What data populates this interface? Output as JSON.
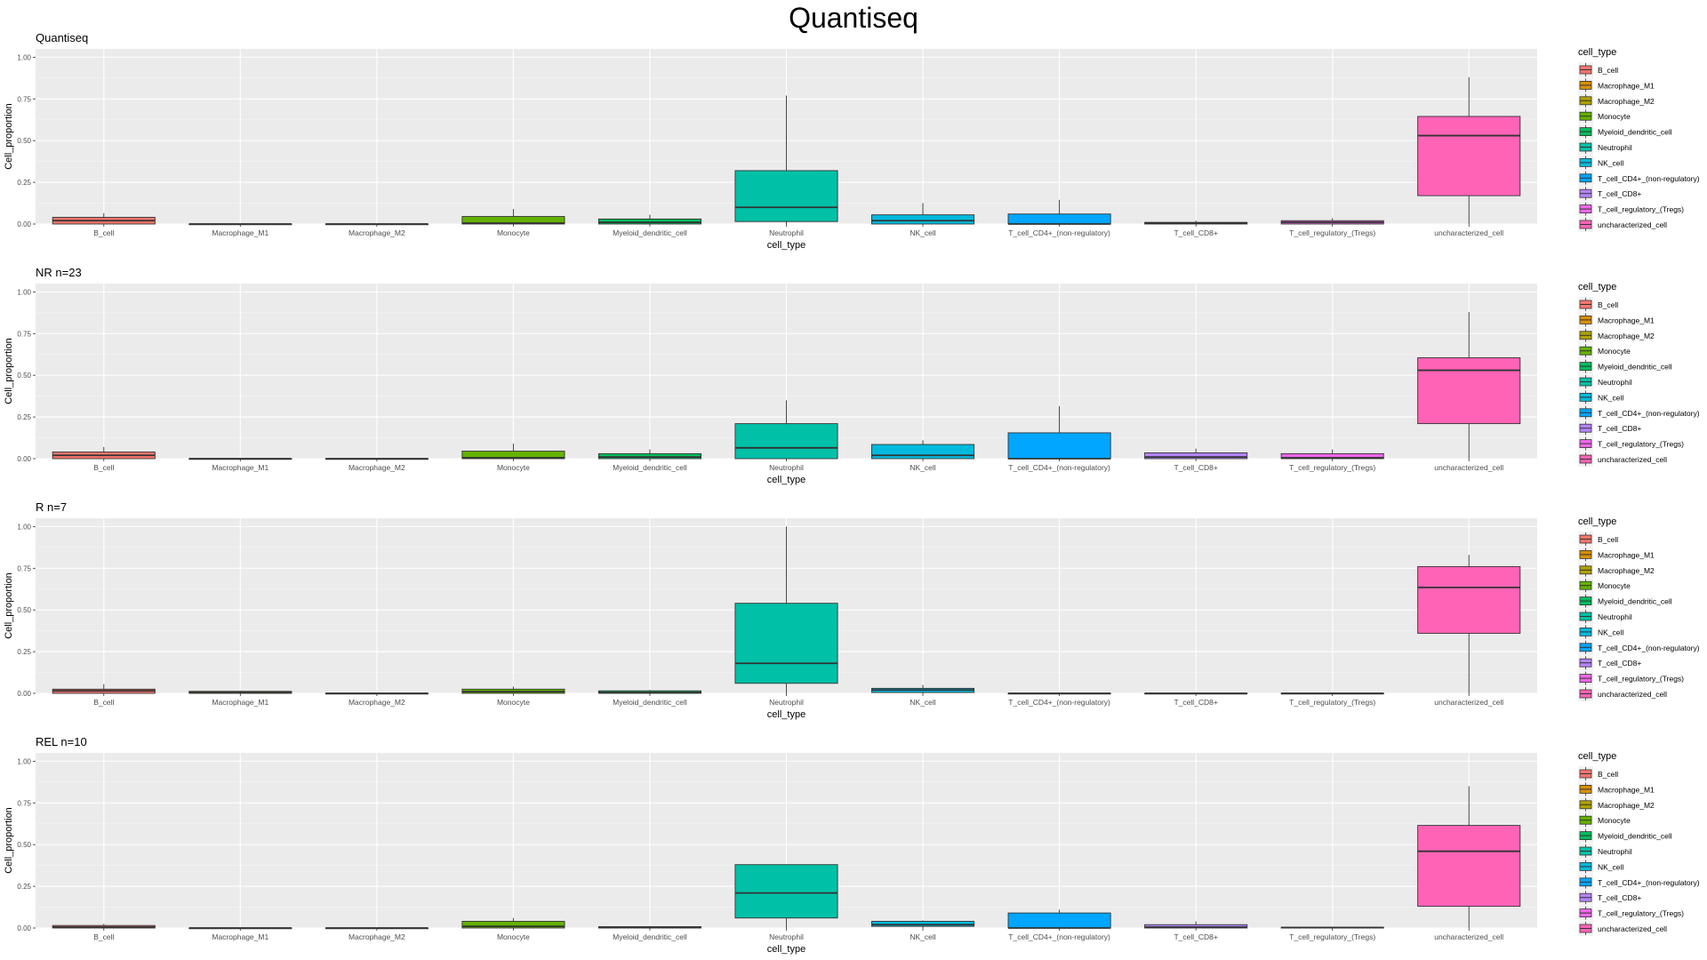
{
  "figure": {
    "title": "Quantiseq"
  },
  "legend": {
    "title": "cell_type",
    "placement": "right",
    "colors": [
      "#F8766D",
      "#DB8E00",
      "#AEA200",
      "#64B200",
      "#00BD5C",
      "#00C1A7",
      "#00BADE",
      "#00A6FF",
      "#B385FF",
      "#EF67EB",
      "#FF63B6"
    ]
  },
  "chart_data": [
    {
      "type": "boxplot",
      "title": "Quantiseq",
      "xlabel": "cell_type",
      "ylabel": "Cell_proportion",
      "ylim": [
        0,
        1.05
      ],
      "yticks": [
        0,
        0.25,
        0.5,
        0.75,
        1.0
      ],
      "ytick_labels": [
        "0.00",
        "0.25",
        "0.50",
        "0.75",
        "1.00"
      ],
      "grid": true,
      "categories": [
        "B_cell",
        "Macrophage_M1",
        "Macrophage_M2",
        "Monocyte",
        "Myeloid_dendritic_cell",
        "Neutrophil",
        "NK_cell",
        "T_cell_CD4+_(non-regulatory)",
        "T_cell_CD8+",
        "T_cell_regulatory_(Tregs)",
        "uncharacterized_cell"
      ],
      "boxes": [
        {
          "min": 0.0,
          "q1": 0.0,
          "median": 0.02,
          "q3": 0.04,
          "max": 0.065
        },
        {
          "min": 0.0,
          "q1": 0.0,
          "median": 0.0,
          "q3": 0.0,
          "max": 0.0
        },
        {
          "min": 0.0,
          "q1": 0.0,
          "median": 0.0,
          "q3": 0.0,
          "max": 0.0
        },
        {
          "min": 0.0,
          "q1": 0.0,
          "median": 0.005,
          "q3": 0.045,
          "max": 0.09
        },
        {
          "min": 0.0,
          "q1": 0.0,
          "median": 0.01,
          "q3": 0.03,
          "max": 0.055
        },
        {
          "min": 0.0,
          "q1": 0.015,
          "median": 0.1,
          "q3": 0.32,
          "max": 0.77
        },
        {
          "min": 0.0,
          "q1": 0.0,
          "median": 0.02,
          "q3": 0.055,
          "max": 0.125
        },
        {
          "min": 0.0,
          "q1": 0.0,
          "median": 0.0,
          "q3": 0.06,
          "max": 0.145
        },
        {
          "min": 0.0,
          "q1": 0.0,
          "median": 0.005,
          "q3": 0.01,
          "max": 0.02
        },
        {
          "min": 0.0,
          "q1": 0.0,
          "median": 0.01,
          "q3": 0.02,
          "max": 0.035
        },
        {
          "min": 0.0,
          "q1": 0.17,
          "median": 0.53,
          "q3": 0.645,
          "max": 0.88
        }
      ]
    },
    {
      "type": "boxplot",
      "title": "NR n=23",
      "xlabel": "cell_type",
      "ylabel": "Cell_proportion",
      "ylim": [
        0,
        1.05
      ],
      "yticks": [
        0,
        0.25,
        0.5,
        0.75,
        1.0
      ],
      "ytick_labels": [
        "0.00",
        "0.25",
        "0.50",
        "0.75",
        "1.00"
      ],
      "grid": true,
      "categories": [
        "B_cell",
        "Macrophage_M1",
        "Macrophage_M2",
        "Monocyte",
        "Myeloid_dendritic_cell",
        "Neutrophil",
        "NK_cell",
        "T_cell_CD4+_(non-regulatory)",
        "T_cell_CD8+",
        "T_cell_regulatory_(Tregs)",
        "uncharacterized_cell"
      ],
      "boxes": [
        {
          "min": 0.0,
          "q1": 0.0,
          "median": 0.02,
          "q3": 0.04,
          "max": 0.07
        },
        {
          "min": 0.0,
          "q1": 0.0,
          "median": 0.0,
          "q3": 0.0,
          "max": 0.0
        },
        {
          "min": 0.0,
          "q1": 0.0,
          "median": 0.0,
          "q3": 0.0,
          "max": 0.0
        },
        {
          "min": 0.0,
          "q1": 0.0,
          "median": 0.005,
          "q3": 0.045,
          "max": 0.09
        },
        {
          "min": 0.0,
          "q1": 0.0,
          "median": 0.01,
          "q3": 0.03,
          "max": 0.055
        },
        {
          "min": 0.0,
          "q1": 0.0,
          "median": 0.065,
          "q3": 0.21,
          "max": 0.35
        },
        {
          "min": 0.0,
          "q1": 0.0,
          "median": 0.02,
          "q3": 0.085,
          "max": 0.11
        },
        {
          "min": 0.0,
          "q1": 0.0,
          "median": 0.0,
          "q3": 0.155,
          "max": 0.315
        },
        {
          "min": 0.0,
          "q1": 0.0,
          "median": 0.01,
          "q3": 0.035,
          "max": 0.06
        },
        {
          "min": 0.0,
          "q1": 0.0,
          "median": 0.005,
          "q3": 0.03,
          "max": 0.055
        },
        {
          "min": 0.0,
          "q1": 0.21,
          "median": 0.53,
          "q3": 0.605,
          "max": 0.88
        }
      ]
    },
    {
      "type": "boxplot",
      "title": "R n=7",
      "xlabel": "cell_type",
      "ylabel": "Cell_proportion",
      "ylim": [
        0,
        1.05
      ],
      "yticks": [
        0,
        0.25,
        0.5,
        0.75,
        1.0
      ],
      "ytick_labels": [
        "0.00",
        "0.25",
        "0.50",
        "0.75",
        "1.00"
      ],
      "grid": true,
      "categories": [
        "B_cell",
        "Macrophage_M1",
        "Macrophage_M2",
        "Monocyte",
        "Myeloid_dendritic_cell",
        "Neutrophil",
        "NK_cell",
        "T_cell_CD4+_(non-regulatory)",
        "T_cell_CD8+",
        "T_cell_regulatory_(Tregs)",
        "uncharacterized_cell"
      ],
      "boxes": [
        {
          "min": 0.0,
          "q1": 0.0,
          "median": 0.015,
          "q3": 0.025,
          "max": 0.055
        },
        {
          "min": 0.0,
          "q1": 0.0,
          "median": 0.005,
          "q3": 0.012,
          "max": 0.015
        },
        {
          "min": 0.0,
          "q1": 0.0,
          "median": 0.0,
          "q3": 0.0,
          "max": 0.0
        },
        {
          "min": 0.0,
          "q1": 0.0,
          "median": 0.01,
          "q3": 0.025,
          "max": 0.04
        },
        {
          "min": 0.0,
          "q1": 0.0,
          "median": 0.005,
          "q3": 0.015,
          "max": 0.02
        },
        {
          "min": 0.0,
          "q1": 0.06,
          "median": 0.18,
          "q3": 0.54,
          "max": 1.0
        },
        {
          "min": 0.0,
          "q1": 0.005,
          "median": 0.02,
          "q3": 0.03,
          "max": 0.05
        },
        {
          "min": 0.0,
          "q1": 0.0,
          "median": 0.0,
          "q3": 0.0,
          "max": 0.0
        },
        {
          "min": 0.0,
          "q1": 0.0,
          "median": 0.0,
          "q3": 0.0,
          "max": 0.0
        },
        {
          "min": 0.0,
          "q1": 0.0,
          "median": 0.0,
          "q3": 0.0,
          "max": 0.0
        },
        {
          "min": 0.0,
          "q1": 0.36,
          "median": 0.635,
          "q3": 0.76,
          "max": 0.83
        }
      ]
    },
    {
      "type": "boxplot",
      "title": "REL n=10",
      "xlabel": "cell_type",
      "ylabel": "Cell_proportion",
      "ylim": [
        0,
        1.05
      ],
      "yticks": [
        0,
        0.25,
        0.5,
        0.75,
        1.0
      ],
      "ytick_labels": [
        "0.00",
        "0.25",
        "0.50",
        "0.75",
        "1.00"
      ],
      "grid": true,
      "categories": [
        "B_cell",
        "Macrophage_M1",
        "Macrophage_M2",
        "Monocyte",
        "Myeloid_dendritic_cell",
        "Neutrophil",
        "NK_cell",
        "T_cell_CD4+_(non-regulatory)",
        "T_cell_CD8+",
        "T_cell_regulatory_(Tregs)",
        "uncharacterized_cell"
      ],
      "boxes": [
        {
          "min": 0.0,
          "q1": 0.0,
          "median": 0.005,
          "q3": 0.015,
          "max": 0.025
        },
        {
          "min": 0.0,
          "q1": 0.0,
          "median": 0.0,
          "q3": 0.0,
          "max": 0.0
        },
        {
          "min": 0.0,
          "q1": 0.0,
          "median": 0.0,
          "q3": 0.0,
          "max": 0.0
        },
        {
          "min": 0.0,
          "q1": 0.0,
          "median": 0.01,
          "q3": 0.04,
          "max": 0.06
        },
        {
          "min": 0.0,
          "q1": 0.0,
          "median": 0.003,
          "q3": 0.008,
          "max": 0.012
        },
        {
          "min": 0.0,
          "q1": 0.06,
          "median": 0.21,
          "q3": 0.38,
          "max": 0.38
        },
        {
          "min": 0.0,
          "q1": 0.01,
          "median": 0.02,
          "q3": 0.04,
          "max": 0.045
        },
        {
          "min": 0.0,
          "q1": 0.0,
          "median": 0.0,
          "q3": 0.09,
          "max": 0.11
        },
        {
          "min": 0.0,
          "q1": 0.0,
          "median": 0.005,
          "q3": 0.02,
          "max": 0.04
        },
        {
          "min": 0.0,
          "q1": 0.0,
          "median": 0.002,
          "q3": 0.005,
          "max": 0.008
        },
        {
          "min": 0.0,
          "q1": 0.13,
          "median": 0.46,
          "q3": 0.615,
          "max": 0.85
        }
      ]
    }
  ]
}
